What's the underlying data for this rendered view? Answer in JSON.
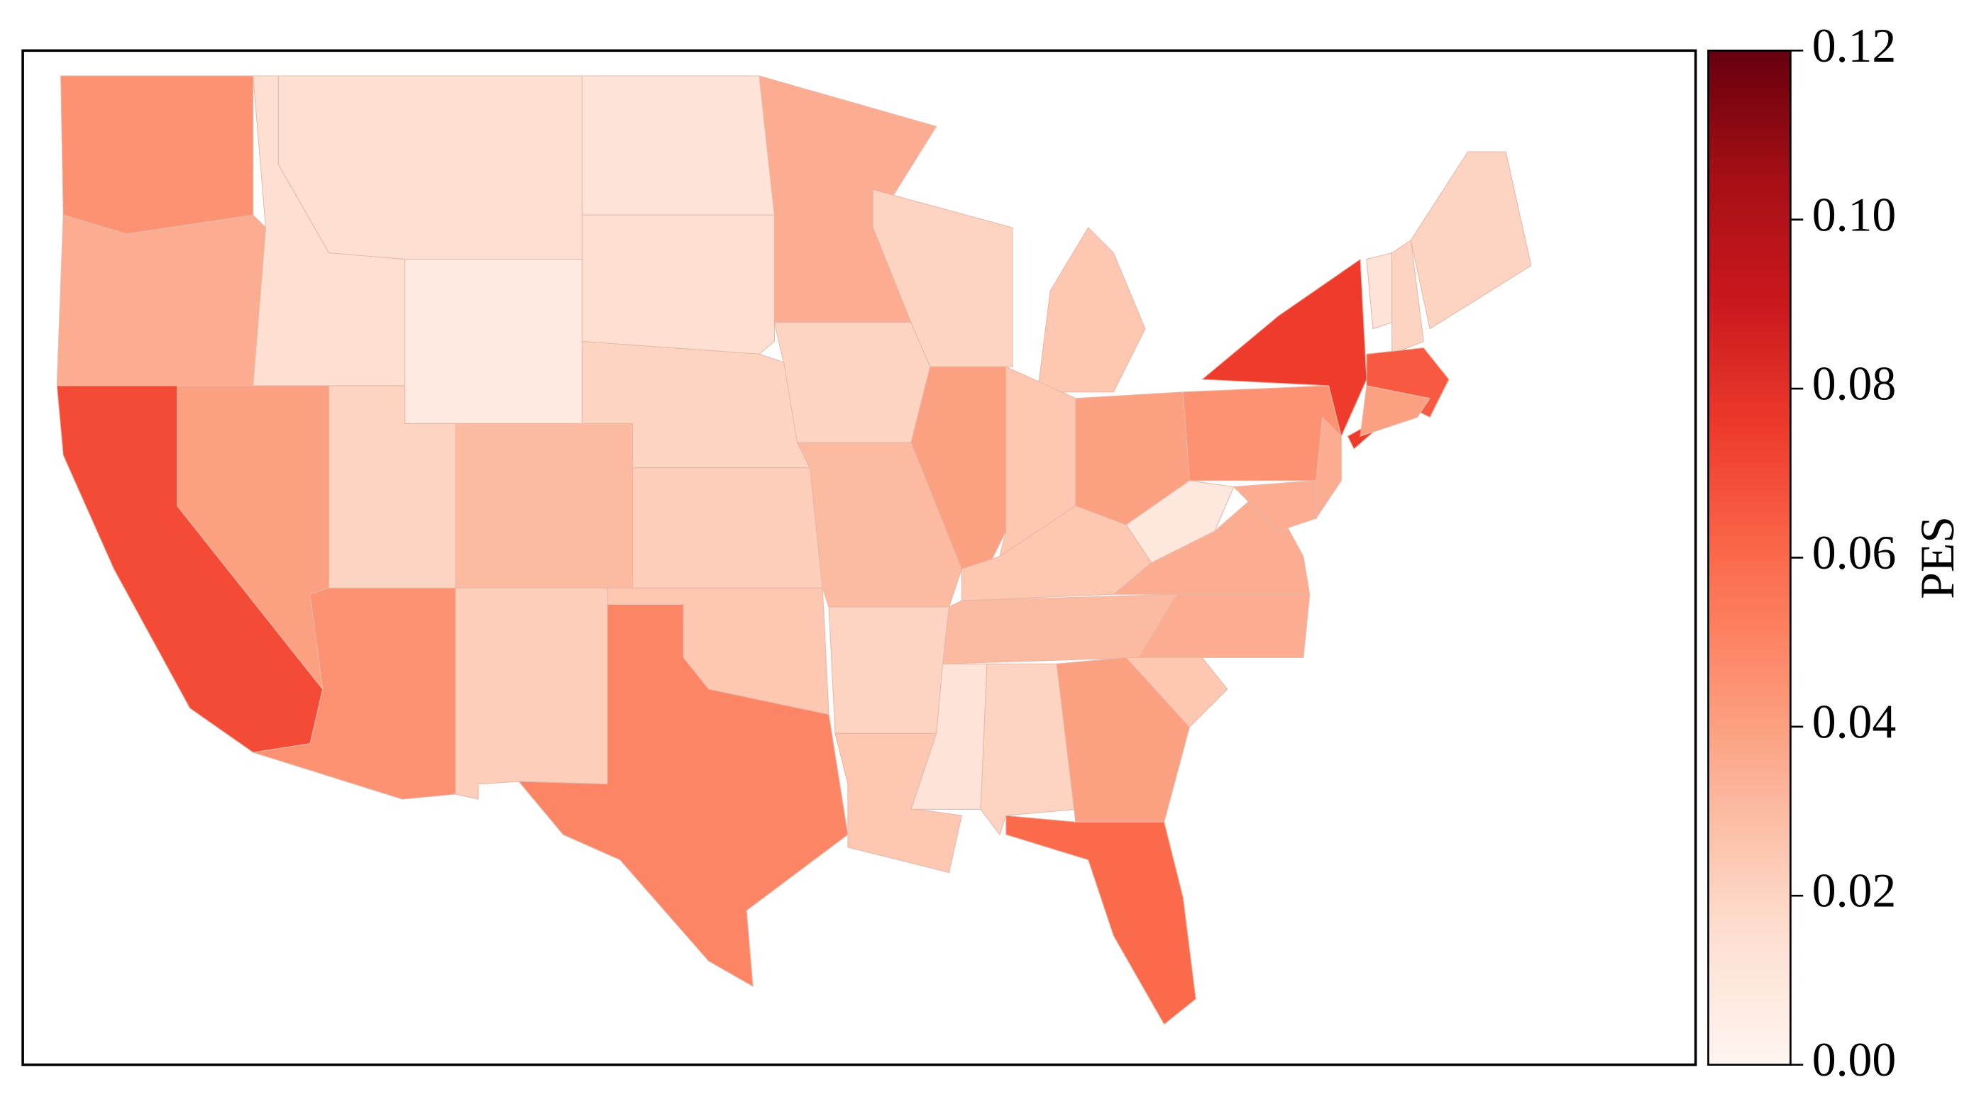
{
  "chart_data": {
    "type": "choropleth",
    "values": [
      0.045,
      0.035,
      0.07,
      0.04,
      0.015,
      0.015,
      0.008,
      0.02,
      0.03,
      0.045,
      0.022,
      0.012,
      0.015,
      0.02,
      0.022,
      0.025,
      0.05,
      0.035,
      0.02,
      0.03,
      0.02,
      0.025,
      0.02,
      0.04,
      0.025,
      0.025,
      0.04,
      0.025,
      0.03,
      0.012,
      0.02,
      0.04,
      0.06,
      0.025,
      0.035,
      0.035,
      0.01,
      0.045,
      0.075,
      0.075,
      0.035,
      0.035,
      0.012,
      0.02,
      0.02,
      0.065,
      0.04
    ],
    "colormap": [
      "#fff5f0",
      "#fee0d2",
      "#fcbba1",
      "#fc9272",
      "#fb6a4a",
      "#ef3b2c",
      "#cb181d",
      "#a50f15",
      "#67000d"
    ],
    "colorbar_label": "PES",
    "clim": [
      0,
      0.12
    ],
    "cticks": [
      {
        "value": 0,
        "label": "0.00"
      },
      {
        "value": 0.02,
        "label": "0.02"
      },
      {
        "value": 0.04,
        "label": "0.04"
      },
      {
        "value": 0.06,
        "label": "0.06"
      },
      {
        "value": 0.08,
        "label": "0.08"
      },
      {
        "value": 0.1,
        "label": "0.10"
      },
      {
        "value": 0.12,
        "label": "0.12"
      }
    ]
  }
}
